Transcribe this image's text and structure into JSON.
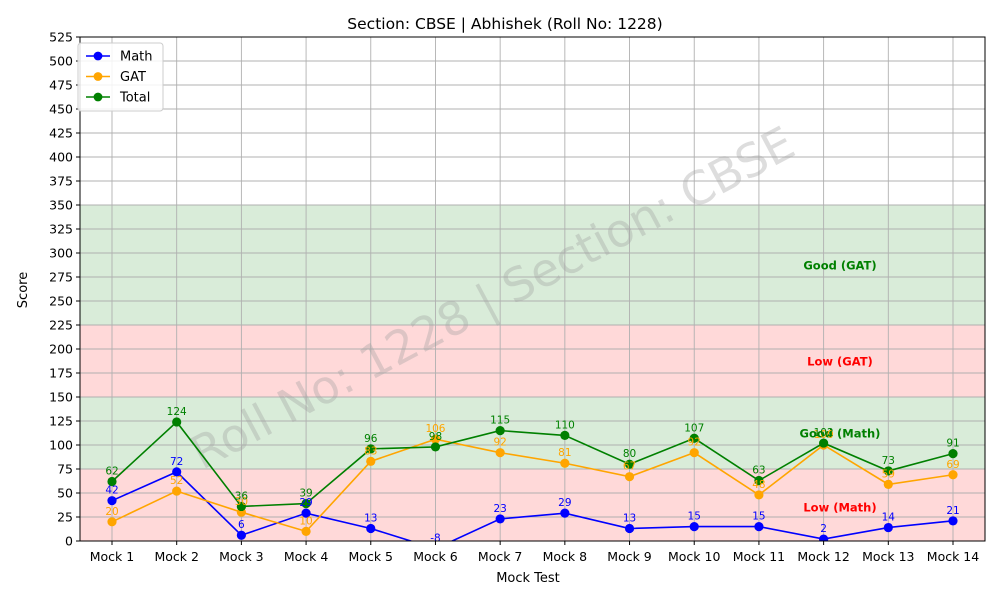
{
  "chart_data": {
    "type": "line",
    "title": "Section: CBSE | Abhishek (Roll No: 1228)",
    "xlabel": "Mock Test",
    "ylabel": "Score",
    "ylim": [
      0,
      525
    ],
    "ytick_step": 25,
    "grid": true,
    "legend_position": "top-left",
    "categories": [
      "Mock 1",
      "Mock 2",
      "Mock 3",
      "Mock 4",
      "Mock 5",
      "Mock 6",
      "Mock 7",
      "Mock 8",
      "Mock 9",
      "Mock 10",
      "Mock 11",
      "Mock 12",
      "Mock 13",
      "Mock 14"
    ],
    "series": [
      {
        "name": "Math",
        "color": "#0000ff",
        "values": [
          42,
          72,
          6,
          29,
          13,
          -8,
          23,
          29,
          13,
          15,
          15,
          2,
          14,
          21
        ]
      },
      {
        "name": "GAT",
        "color": "#ffa500",
        "values": [
          20,
          52,
          30,
          10,
          83,
          106,
          92,
          81,
          67,
          92,
          48,
          100,
          59,
          69
        ]
      },
      {
        "name": "Total",
        "color": "#008000",
        "values": [
          62,
          124,
          36,
          39,
          96,
          98,
          115,
          110,
          80,
          107,
          63,
          102,
          73,
          91
        ]
      }
    ],
    "zones": [
      {
        "label": "Low (Math)",
        "from": 0,
        "to": 75,
        "fill": "#ffcccc",
        "text_color": "#ff0000",
        "label_y": 35
      },
      {
        "label": "Good (Math)",
        "from": 75,
        "to": 150,
        "fill": "#cce6cc",
        "text_color": "#008000",
        "label_y": 112
      },
      {
        "label": "Low (GAT)",
        "from": 150,
        "to": 225,
        "fill": "#ffcccc",
        "text_color": "#ff0000",
        "label_y": 187
      },
      {
        "label": "Good (GAT)",
        "from": 225,
        "to": 350,
        "fill": "#cce6cc",
        "text_color": "#008000",
        "label_y": 287
      }
    ],
    "watermark": "Roll No: 1228 | Section: CBSE"
  }
}
